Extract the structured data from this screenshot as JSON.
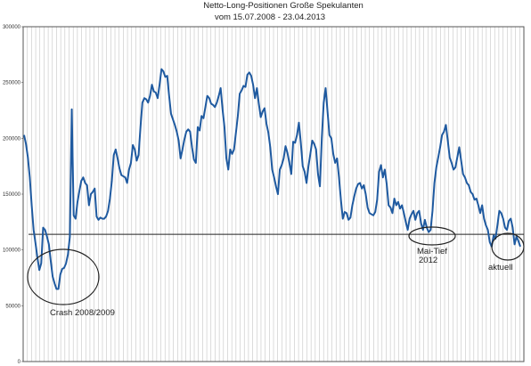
{
  "chart_data": {
    "type": "line",
    "title": "Netto-Long-Positionen  Große Spekulanten",
    "subtitle": "vom 15.07.2008 - 23.04.2013",
    "xlabel": "",
    "ylabel": "",
    "ylim": [
      0,
      300000
    ],
    "yticks": [
      "0",
      "50000",
      "100000",
      "150000",
      "200000",
      "250000",
      "300000"
    ],
    "grid": "vertical",
    "legend": "none",
    "line_color": "#1f5aa0",
    "reference_line": {
      "value": 114000,
      "color": "#222222"
    },
    "annotations": [
      {
        "label": "Crash 2008/2009"
      },
      {
        "label": "Mai-Tief"
      },
      {
        "label": "2012"
      },
      {
        "label": "aktuell"
      }
    ],
    "series": [
      {
        "name": "",
        "values": [
          203000,
          195000,
          183000,
          165000,
          140000,
          118000,
          106000,
          93000,
          82000,
          88000,
          120000,
          118000,
          112000,
          105000,
          90000,
          76000,
          70000,
          65000,
          65000,
          78000,
          83000,
          84000,
          88000,
          96000,
          112000,
          226000,
          131000,
          128000,
          143000,
          153000,
          162000,
          165000,
          160000,
          158000,
          140000,
          150000,
          152000,
          155000,
          130000,
          127000,
          129000,
          128000,
          128000,
          130000,
          135000,
          146000,
          162000,
          185000,
          190000,
          182000,
          173000,
          167000,
          166000,
          165000,
          160000,
          172000,
          178000,
          194000,
          190000,
          180000,
          185000,
          210000,
          232000,
          236000,
          235000,
          232000,
          238000,
          248000,
          242000,
          241000,
          236000,
          248000,
          262000,
          260000,
          255000,
          256000,
          238000,
          222000,
          217000,
          212000,
          206000,
          198000,
          182000,
          190000,
          199000,
          206000,
          208000,
          206000,
          192000,
          181000,
          178000,
          210000,
          207000,
          220000,
          218000,
          228000,
          238000,
          236000,
          231000,
          230000,
          228000,
          232000,
          238000,
          245000,
          226000,
          210000,
          182000,
          172000,
          190000,
          186000,
          190000,
          205000,
          220000,
          240000,
          243000,
          247000,
          246000,
          257000,
          259000,
          256000,
          248000,
          236000,
          245000,
          231000,
          219000,
          224000,
          227000,
          213000,
          205000,
          192000,
          172000,
          165000,
          157000,
          150000,
          172000,
          176000,
          182000,
          193000,
          187000,
          178000,
          168000,
          197000,
          196000,
          203000,
          214000,
          196000,
          175000,
          170000,
          160000,
          175000,
          186000,
          198000,
          195000,
          190000,
          168000,
          157000,
          200000,
          232000,
          245000,
          224000,
          203000,
          200000,
          186000,
          178000,
          182000,
          165000,
          145000,
          128000,
          134000,
          133000,
          127000,
          129000,
          140000,
          148000,
          155000,
          159000,
          160000,
          155000,
          158000,
          150000,
          138000,
          133000,
          132000,
          131000,
          134000,
          145000,
          170000,
          176000,
          165000,
          172000,
          159000,
          140000,
          138000,
          133000,
          146000,
          140000,
          143000,
          137000,
          140000,
          133000,
          125000,
          118000,
          128000,
          132000,
          135000,
          127000,
          133000,
          135000,
          124000,
          118000,
          127000,
          120000,
          116000,
          118000,
          135000,
          160000,
          174000,
          183000,
          192000,
          203000,
          206000,
          212000,
          198000,
          183000,
          178000,
          172000,
          174000,
          183000,
          192000,
          180000,
          168000,
          165000,
          160000,
          158000,
          152000,
          150000,
          145000,
          146000,
          140000,
          133000,
          140000,
          128000,
          122000,
          118000,
          107000,
          103000,
          113000,
          110000,
          122000,
          135000,
          133000,
          128000,
          120000,
          118000,
          126000,
          128000,
          120000,
          105000,
          112000,
          108000,
          103000
        ]
      }
    ]
  }
}
